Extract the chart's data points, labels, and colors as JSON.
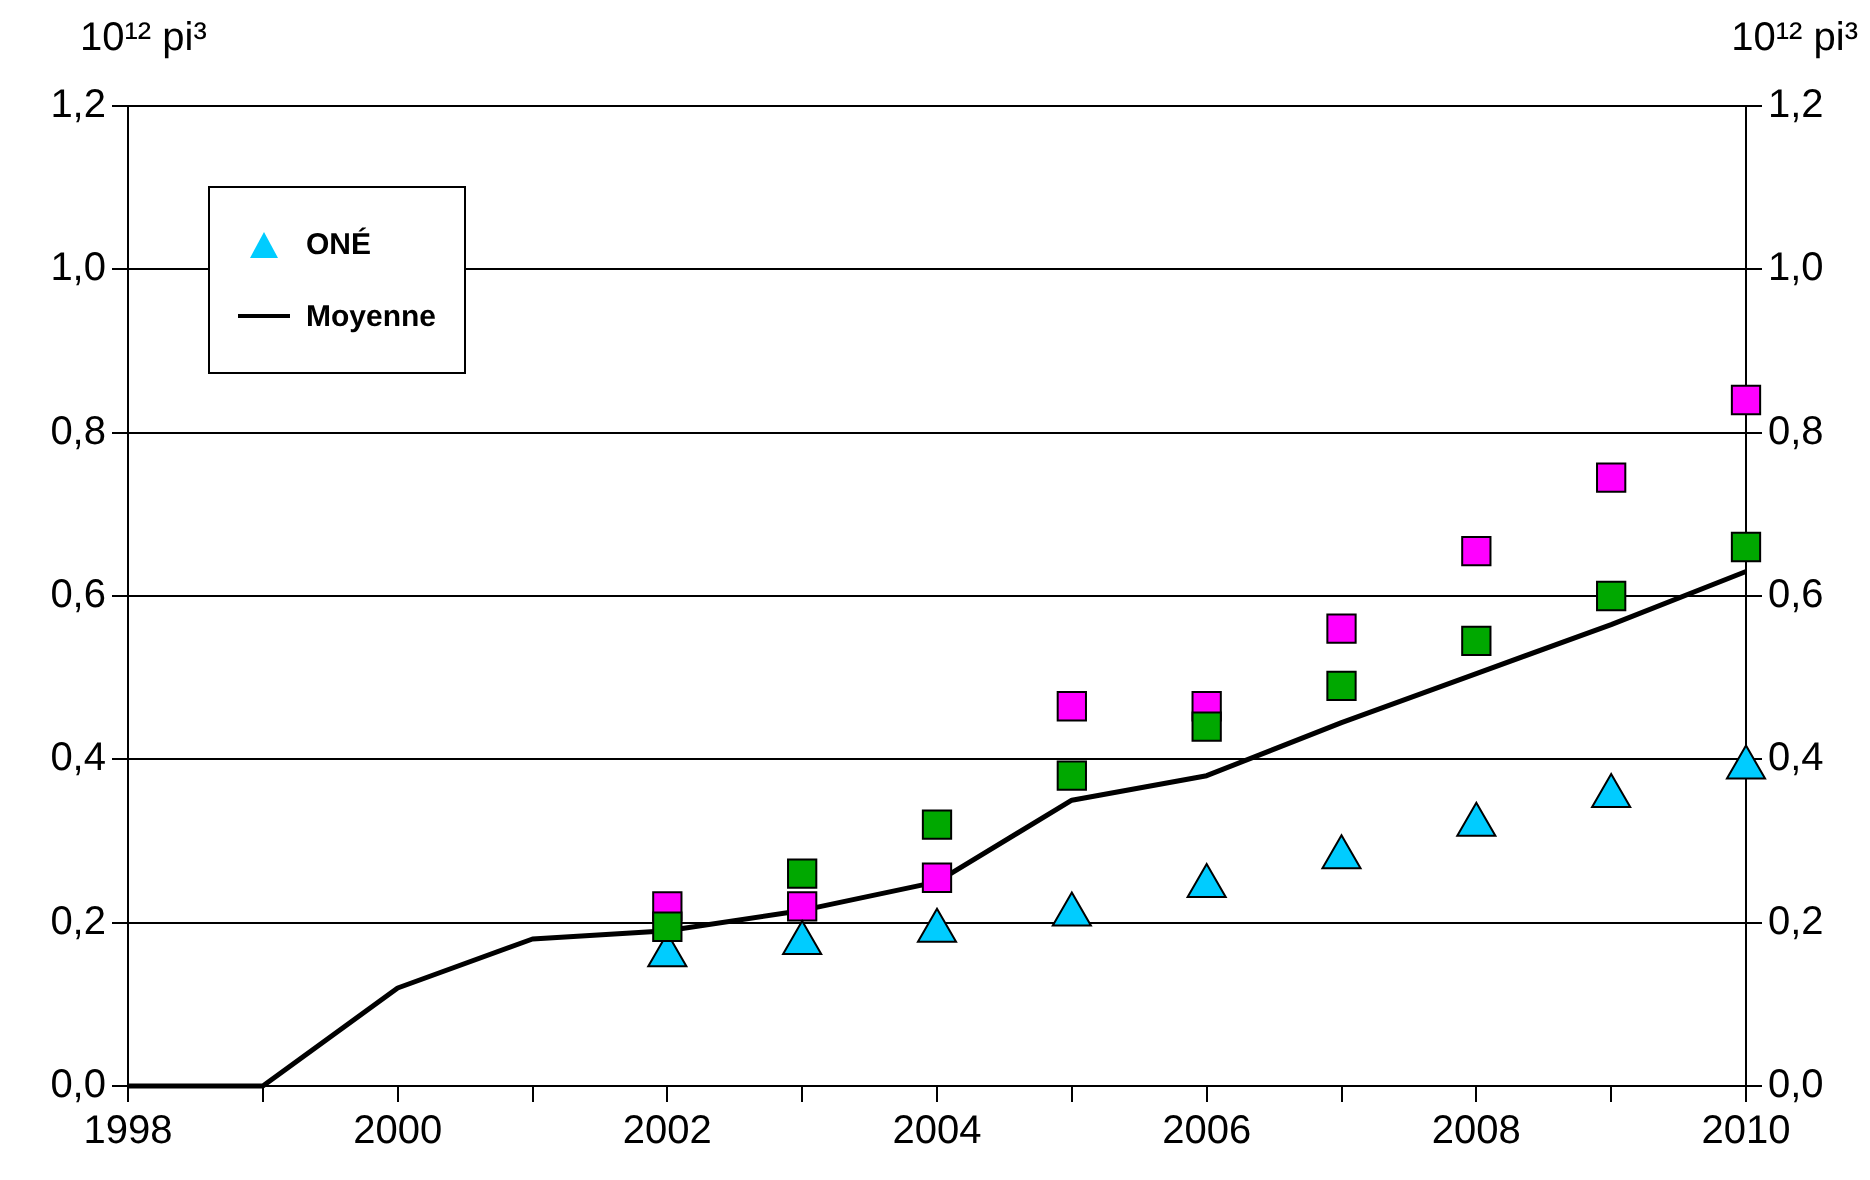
{
  "chart_data": {
    "type": "scatter",
    "ylabel": "10¹² pi³",
    "y2label": "10¹² pi³",
    "xlim": [
      1998,
      2010
    ],
    "xticks": [
      1998,
      {
        "value": 1999,
        "label": null
      },
      2000,
      {
        "value": 2001,
        "label": null
      },
      2002,
      {
        "value": 2003,
        "label": null
      },
      2004,
      {
        "value": 2005,
        "label": null
      },
      2006,
      {
        "value": 2007,
        "label": null
      },
      2008,
      {
        "value": 2009,
        "label": null
      },
      2010
    ],
    "ylim": [
      0,
      1.2
    ],
    "yticks": [
      {
        "value": 0,
        "label": "0,0"
      },
      {
        "value": 0.2,
        "label": "0,2"
      },
      {
        "value": 0.4,
        "label": "0,4"
      },
      {
        "value": 0.6,
        "label": "0,6"
      },
      {
        "value": 0.8,
        "label": "0,8"
      },
      {
        "value": 1,
        "label": "1,0"
      },
      {
        "value": 1.2,
        "label": "1,2"
      }
    ],
    "y2lim": [
      0,
      1.2
    ],
    "y2ticks": [
      {
        "value": 0,
        "label": "0,0"
      },
      {
        "value": 0.2,
        "label": "0,2"
      },
      {
        "value": 0.4,
        "label": "0,4"
      },
      {
        "value": 0.6,
        "label": "0,6"
      },
      {
        "value": 0.8,
        "label": "0,8"
      },
      {
        "value": 1,
        "label": "1,0"
      },
      {
        "value": 1.2,
        "label": "1,2"
      }
    ],
    "grid": "y",
    "legend": "top left",
    "series": [
      {
        "marker": "square",
        "color": "#00a800",
        "x": [
          2002,
          2003,
          2004,
          2005,
          2006,
          2007,
          2008,
          2009,
          2010
        ],
        "values": [
          0.195,
          0.26,
          0.32,
          0.38,
          0.44,
          0.49,
          0.545,
          0.6,
          0.66
        ]
      },
      {
        "name": "ONÉ",
        "marker": "triangle",
        "color": "#00ccff",
        "x": [
          2002,
          2003,
          2004,
          2005,
          2006,
          2007,
          2008,
          2009,
          2010
        ],
        "values": [
          0.16,
          0.175,
          0.19,
          0.21,
          0.245,
          0.28,
          0.32,
          0.355,
          0.39
        ]
      },
      {
        "marker": "square",
        "color": "#ff00ff",
        "x": [
          2002,
          2003,
          2004,
          2005,
          2006,
          2007,
          2008,
          2009,
          2010
        ],
        "values": [
          0.22,
          0.22,
          0.255,
          0.465,
          0.465,
          0.56,
          0.655,
          0.745,
          0.84
        ]
      },
      {
        "name": "Moyenne",
        "type": "line",
        "marker": "none",
        "color": "#000000",
        "x": [
          1998,
          1999,
          2000,
          2001,
          2002,
          2003,
          2004,
          2005,
          2006,
          2007,
          2008,
          2009,
          2010
        ],
        "values": [
          0,
          0,
          0.12,
          0.18,
          0.19,
          0.215,
          0.25,
          0.35,
          0.38,
          0.445,
          0.505,
          0.565,
          0.63
        ]
      }
    ]
  }
}
